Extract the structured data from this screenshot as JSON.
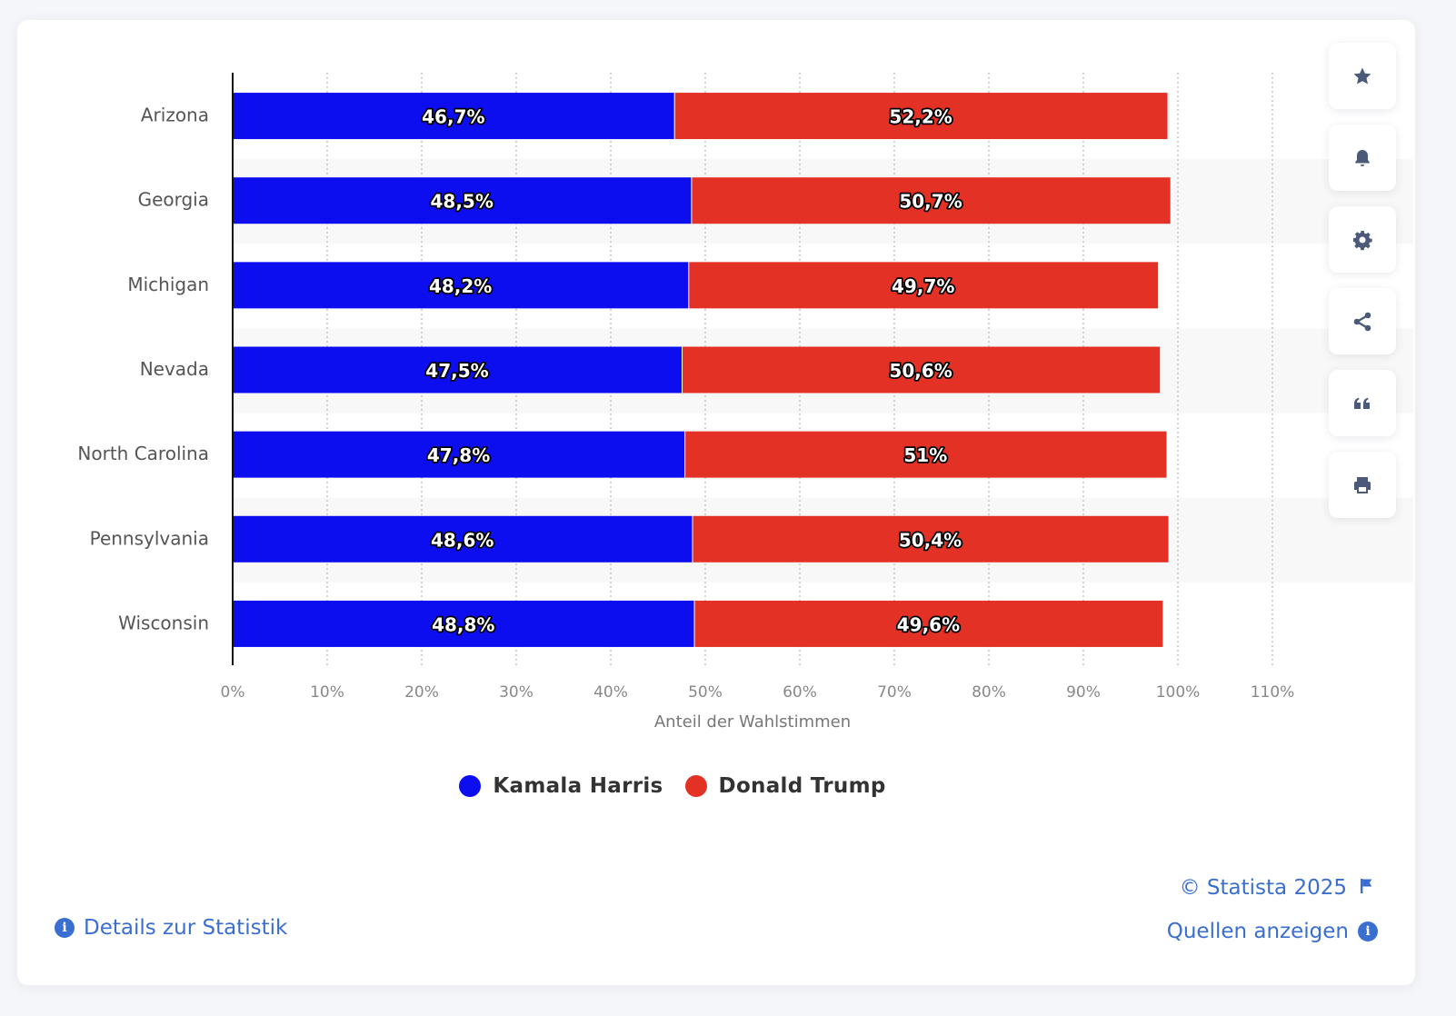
{
  "chart_data": {
    "type": "bar",
    "orientation": "horizontal",
    "stacked": true,
    "title": "",
    "categories": [
      "Arizona",
      "Georgia",
      "Michigan",
      "Nevada",
      "North Carolina",
      "Pennsylvania",
      "Wisconsin"
    ],
    "series": [
      {
        "name": "Kamala Harris",
        "color": "#0c0ef0",
        "values": [
          46.7,
          48.5,
          48.2,
          47.5,
          47.8,
          48.6,
          48.8
        ],
        "labels": [
          "46,7%",
          "48,5%",
          "48,2%",
          "47,5%",
          "47,8%",
          "48,6%",
          "48,8%"
        ]
      },
      {
        "name": "Donald Trump",
        "color": "#e33225",
        "values": [
          52.2,
          50.7,
          49.7,
          50.6,
          51,
          50.4,
          49.6
        ],
        "labels": [
          "52,2%",
          "50,7%",
          "49,7%",
          "50,6%",
          "51%",
          "50,4%",
          "49,6%"
        ]
      }
    ],
    "xlabel": "Anteil der Wahlstimmen",
    "ylabel": "",
    "xlim": [
      0,
      110
    ],
    "xticks": [
      0,
      10,
      20,
      30,
      40,
      50,
      60,
      70,
      80,
      90,
      100,
      110
    ],
    "xtick_labels": [
      "0%",
      "10%",
      "20%",
      "30%",
      "40%",
      "50%",
      "60%",
      "70%",
      "80%",
      "90%",
      "100%",
      "110%"
    ],
    "grid": "vertical-dotted",
    "legend": "bottom-center"
  },
  "legend": {
    "items": [
      {
        "label": "Kamala Harris",
        "color": "#0c0ef0"
      },
      {
        "label": "Donald Trump",
        "color": "#e33225"
      }
    ]
  },
  "toolbar": {
    "buttons": [
      {
        "name": "favorite",
        "icon": "star-icon"
      },
      {
        "name": "notification",
        "icon": "bell-icon"
      },
      {
        "name": "settings",
        "icon": "gear-icon"
      },
      {
        "name": "share",
        "icon": "share-icon"
      },
      {
        "name": "cite",
        "icon": "quote-icon"
      },
      {
        "name": "print",
        "icon": "printer-icon"
      }
    ]
  },
  "footer": {
    "details_label": "Details zur Statistik",
    "copyright_label": "© Statista 2025",
    "sources_label": "Quellen anzeigen"
  },
  "colors": {
    "accent": "#3a6fd1",
    "icon": "#4a5a78"
  }
}
